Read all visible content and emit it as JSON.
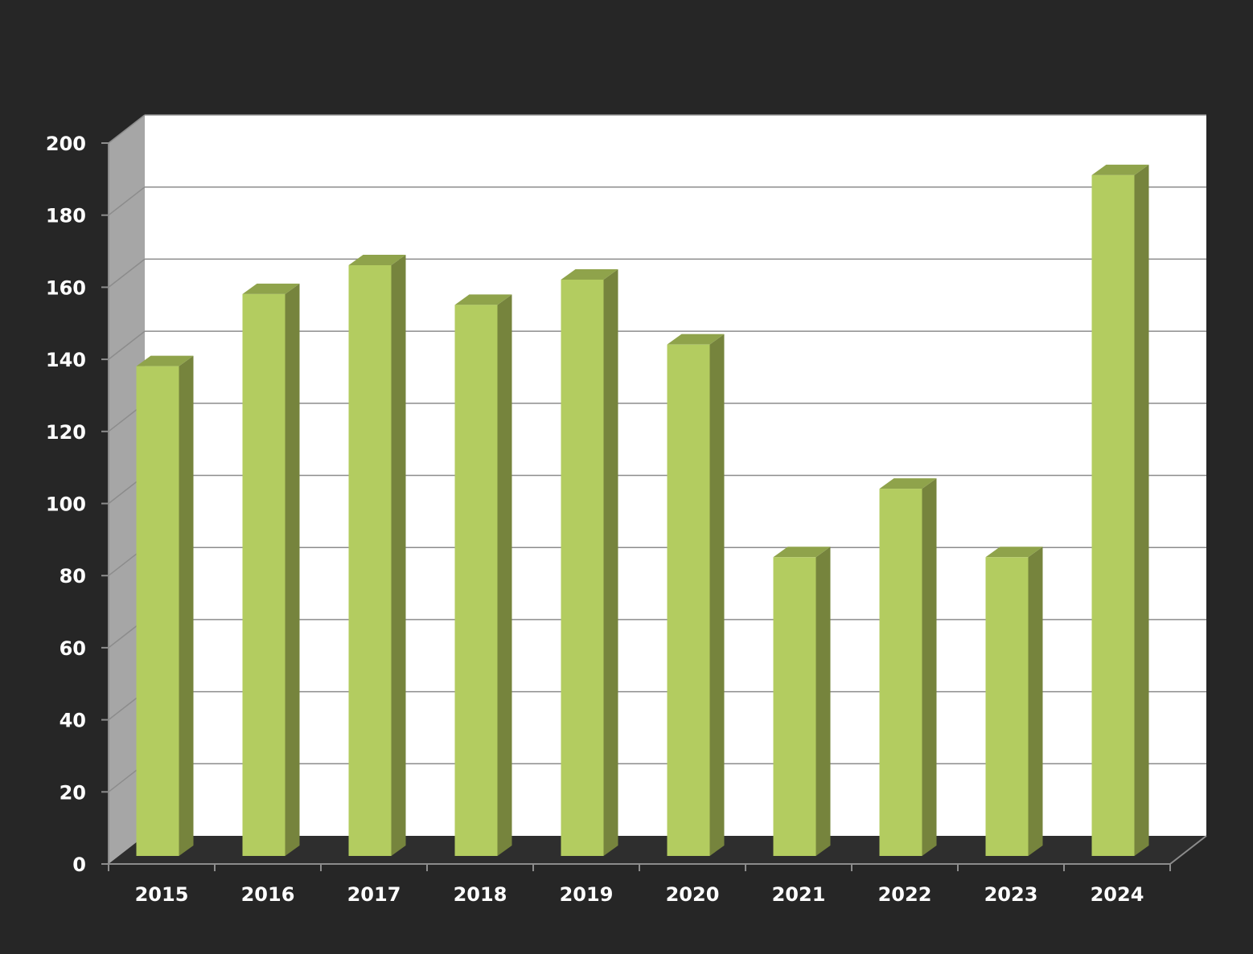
{
  "chart_data": {
    "type": "bar",
    "title": "",
    "xlabel": "",
    "ylabel": "",
    "categories": [
      "2015",
      "2016",
      "2017",
      "2018",
      "2019",
      "2020",
      "2021",
      "2022",
      "2023",
      "2024"
    ],
    "series": [
      {
        "values": [
          139,
          159,
          167,
          156,
          163,
          145,
          86,
          105,
          86,
          192
        ]
      }
    ],
    "ylim": [
      0,
      200
    ],
    "yticks": [
      "0",
      "20",
      "40",
      "60",
      "80",
      "100",
      "120",
      "140",
      "160",
      "180",
      "200"
    ],
    "grid": true,
    "legend": "none",
    "style": "3d-column",
    "colors": {
      "background": "#262626",
      "plot_back_wall": "#ffffff",
      "plot_side_wall": "#a6a6a6",
      "plot_floor": "#2e2e2e",
      "gridline": "#8c8c8c",
      "bar_front": "#b3cc60",
      "bar_top": "#8fa34b",
      "bar_side": "#76843d",
      "text": "#ffffff"
    }
  }
}
